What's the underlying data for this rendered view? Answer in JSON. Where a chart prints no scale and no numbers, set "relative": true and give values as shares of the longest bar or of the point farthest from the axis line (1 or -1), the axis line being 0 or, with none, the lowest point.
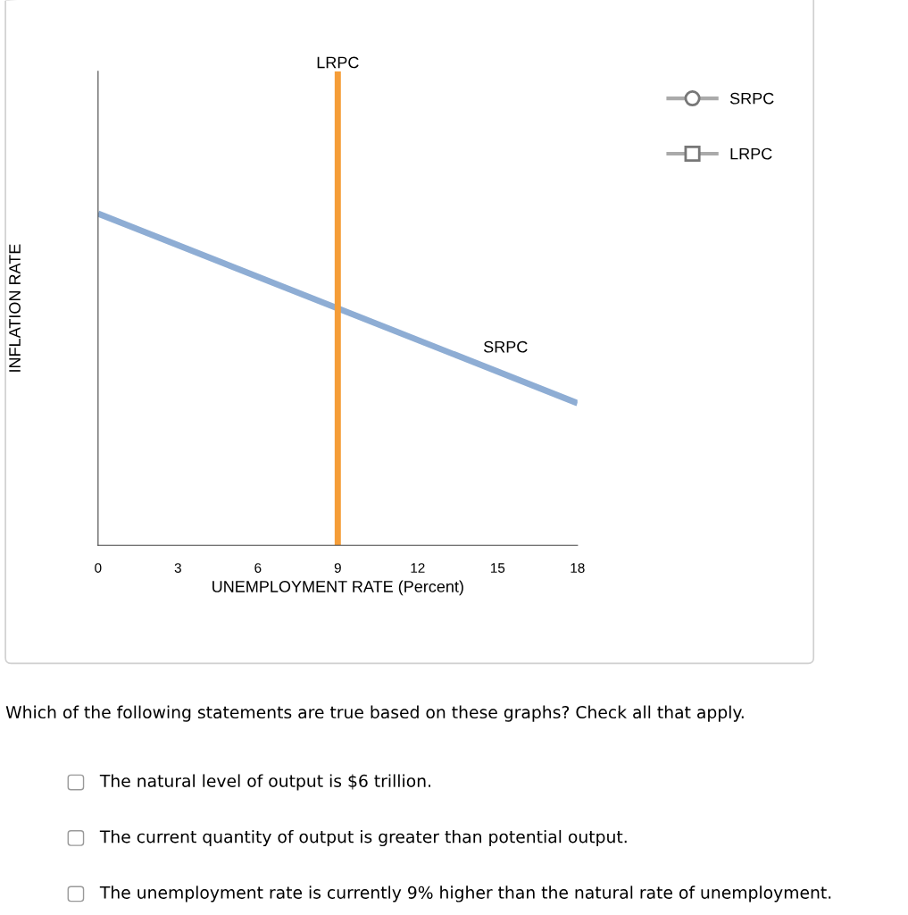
{
  "chart_data": {
    "type": "line",
    "relative": true,
    "xlabel": "UNEMPLOYMENT RATE (Percent)",
    "ylabel": "INFLATION RATE",
    "xlim": [
      0,
      18
    ],
    "xticks": [
      0,
      3,
      6,
      9,
      12,
      15,
      18
    ],
    "grid": false,
    "legend": "right",
    "series": [
      {
        "name": "SRPC",
        "color": "#8eadd4",
        "x": [
          0,
          18
        ],
        "values": [
          0.7,
          0.3
        ]
      },
      {
        "name": "LRPC",
        "color": "#f59d38",
        "x": [
          9,
          9
        ],
        "values": [
          0,
          1
        ]
      }
    ],
    "annotations": [
      "Which of the following statements are true based on these graphs? Check all that apply.",
      "The natural level of output is $6 trillion.",
      "The current quantity of output is greater than potential output.",
      "The unemployment rate is currently 9% higher than the natural rate of unemployment."
    ]
  }
}
